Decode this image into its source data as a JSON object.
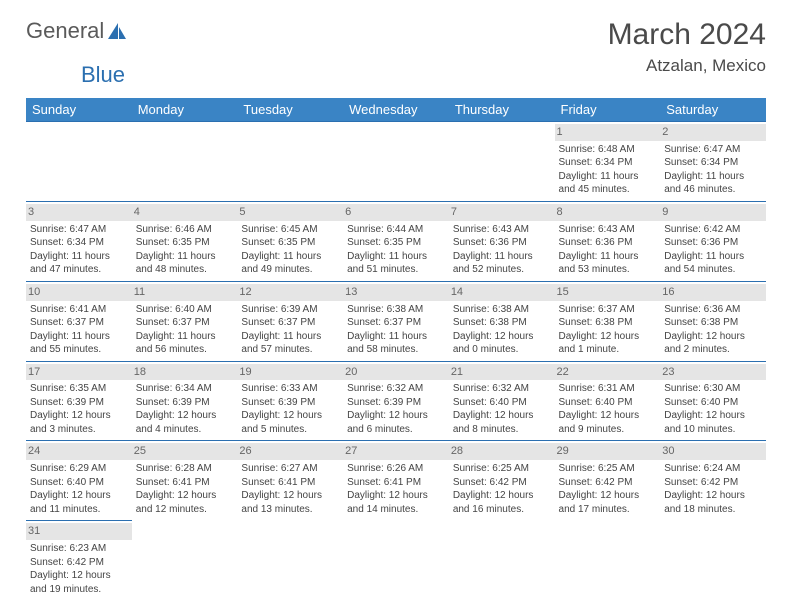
{
  "logo": {
    "word1": "General",
    "word2": "Blue",
    "sail_color": "#2b6fb0"
  },
  "title": "March 2024",
  "location": "Atzalan, Mexico",
  "colors": {
    "header_bg": "#3a84c5",
    "header_text": "#ffffff",
    "row_divider": "#2b6fb0",
    "daynum_bg": "#e5e5e5",
    "text": "#444444"
  },
  "day_headers": [
    "Sunday",
    "Monday",
    "Tuesday",
    "Wednesday",
    "Thursday",
    "Friday",
    "Saturday"
  ],
  "weeks": [
    [
      {
        "n": "",
        "sr": "",
        "ss": "",
        "d1": "",
        "d2": ""
      },
      {
        "n": "",
        "sr": "",
        "ss": "",
        "d1": "",
        "d2": ""
      },
      {
        "n": "",
        "sr": "",
        "ss": "",
        "d1": "",
        "d2": ""
      },
      {
        "n": "",
        "sr": "",
        "ss": "",
        "d1": "",
        "d2": ""
      },
      {
        "n": "",
        "sr": "",
        "ss": "",
        "d1": "",
        "d2": ""
      },
      {
        "n": "1",
        "sr": "Sunrise: 6:48 AM",
        "ss": "Sunset: 6:34 PM",
        "d1": "Daylight: 11 hours",
        "d2": "and 45 minutes."
      },
      {
        "n": "2",
        "sr": "Sunrise: 6:47 AM",
        "ss": "Sunset: 6:34 PM",
        "d1": "Daylight: 11 hours",
        "d2": "and 46 minutes."
      }
    ],
    [
      {
        "n": "3",
        "sr": "Sunrise: 6:47 AM",
        "ss": "Sunset: 6:34 PM",
        "d1": "Daylight: 11 hours",
        "d2": "and 47 minutes."
      },
      {
        "n": "4",
        "sr": "Sunrise: 6:46 AM",
        "ss": "Sunset: 6:35 PM",
        "d1": "Daylight: 11 hours",
        "d2": "and 48 minutes."
      },
      {
        "n": "5",
        "sr": "Sunrise: 6:45 AM",
        "ss": "Sunset: 6:35 PM",
        "d1": "Daylight: 11 hours",
        "d2": "and 49 minutes."
      },
      {
        "n": "6",
        "sr": "Sunrise: 6:44 AM",
        "ss": "Sunset: 6:35 PM",
        "d1": "Daylight: 11 hours",
        "d2": "and 51 minutes."
      },
      {
        "n": "7",
        "sr": "Sunrise: 6:43 AM",
        "ss": "Sunset: 6:36 PM",
        "d1": "Daylight: 11 hours",
        "d2": "and 52 minutes."
      },
      {
        "n": "8",
        "sr": "Sunrise: 6:43 AM",
        "ss": "Sunset: 6:36 PM",
        "d1": "Daylight: 11 hours",
        "d2": "and 53 minutes."
      },
      {
        "n": "9",
        "sr": "Sunrise: 6:42 AM",
        "ss": "Sunset: 6:36 PM",
        "d1": "Daylight: 11 hours",
        "d2": "and 54 minutes."
      }
    ],
    [
      {
        "n": "10",
        "sr": "Sunrise: 6:41 AM",
        "ss": "Sunset: 6:37 PM",
        "d1": "Daylight: 11 hours",
        "d2": "and 55 minutes."
      },
      {
        "n": "11",
        "sr": "Sunrise: 6:40 AM",
        "ss": "Sunset: 6:37 PM",
        "d1": "Daylight: 11 hours",
        "d2": "and 56 minutes."
      },
      {
        "n": "12",
        "sr": "Sunrise: 6:39 AM",
        "ss": "Sunset: 6:37 PM",
        "d1": "Daylight: 11 hours",
        "d2": "and 57 minutes."
      },
      {
        "n": "13",
        "sr": "Sunrise: 6:38 AM",
        "ss": "Sunset: 6:37 PM",
        "d1": "Daylight: 11 hours",
        "d2": "and 58 minutes."
      },
      {
        "n": "14",
        "sr": "Sunrise: 6:38 AM",
        "ss": "Sunset: 6:38 PM",
        "d1": "Daylight: 12 hours",
        "d2": "and 0 minutes."
      },
      {
        "n": "15",
        "sr": "Sunrise: 6:37 AM",
        "ss": "Sunset: 6:38 PM",
        "d1": "Daylight: 12 hours",
        "d2": "and 1 minute."
      },
      {
        "n": "16",
        "sr": "Sunrise: 6:36 AM",
        "ss": "Sunset: 6:38 PM",
        "d1": "Daylight: 12 hours",
        "d2": "and 2 minutes."
      }
    ],
    [
      {
        "n": "17",
        "sr": "Sunrise: 6:35 AM",
        "ss": "Sunset: 6:39 PM",
        "d1": "Daylight: 12 hours",
        "d2": "and 3 minutes."
      },
      {
        "n": "18",
        "sr": "Sunrise: 6:34 AM",
        "ss": "Sunset: 6:39 PM",
        "d1": "Daylight: 12 hours",
        "d2": "and 4 minutes."
      },
      {
        "n": "19",
        "sr": "Sunrise: 6:33 AM",
        "ss": "Sunset: 6:39 PM",
        "d1": "Daylight: 12 hours",
        "d2": "and 5 minutes."
      },
      {
        "n": "20",
        "sr": "Sunrise: 6:32 AM",
        "ss": "Sunset: 6:39 PM",
        "d1": "Daylight: 12 hours",
        "d2": "and 6 minutes."
      },
      {
        "n": "21",
        "sr": "Sunrise: 6:32 AM",
        "ss": "Sunset: 6:40 PM",
        "d1": "Daylight: 12 hours",
        "d2": "and 8 minutes."
      },
      {
        "n": "22",
        "sr": "Sunrise: 6:31 AM",
        "ss": "Sunset: 6:40 PM",
        "d1": "Daylight: 12 hours",
        "d2": "and 9 minutes."
      },
      {
        "n": "23",
        "sr": "Sunrise: 6:30 AM",
        "ss": "Sunset: 6:40 PM",
        "d1": "Daylight: 12 hours",
        "d2": "and 10 minutes."
      }
    ],
    [
      {
        "n": "24",
        "sr": "Sunrise: 6:29 AM",
        "ss": "Sunset: 6:40 PM",
        "d1": "Daylight: 12 hours",
        "d2": "and 11 minutes."
      },
      {
        "n": "25",
        "sr": "Sunrise: 6:28 AM",
        "ss": "Sunset: 6:41 PM",
        "d1": "Daylight: 12 hours",
        "d2": "and 12 minutes."
      },
      {
        "n": "26",
        "sr": "Sunrise: 6:27 AM",
        "ss": "Sunset: 6:41 PM",
        "d1": "Daylight: 12 hours",
        "d2": "and 13 minutes."
      },
      {
        "n": "27",
        "sr": "Sunrise: 6:26 AM",
        "ss": "Sunset: 6:41 PM",
        "d1": "Daylight: 12 hours",
        "d2": "and 14 minutes."
      },
      {
        "n": "28",
        "sr": "Sunrise: 6:25 AM",
        "ss": "Sunset: 6:42 PM",
        "d1": "Daylight: 12 hours",
        "d2": "and 16 minutes."
      },
      {
        "n": "29",
        "sr": "Sunrise: 6:25 AM",
        "ss": "Sunset: 6:42 PM",
        "d1": "Daylight: 12 hours",
        "d2": "and 17 minutes."
      },
      {
        "n": "30",
        "sr": "Sunrise: 6:24 AM",
        "ss": "Sunset: 6:42 PM",
        "d1": "Daylight: 12 hours",
        "d2": "and 18 minutes."
      }
    ],
    [
      {
        "n": "31",
        "sr": "Sunrise: 6:23 AM",
        "ss": "Sunset: 6:42 PM",
        "d1": "Daylight: 12 hours",
        "d2": "and 19 minutes."
      },
      {
        "n": "",
        "sr": "",
        "ss": "",
        "d1": "",
        "d2": ""
      },
      {
        "n": "",
        "sr": "",
        "ss": "",
        "d1": "",
        "d2": ""
      },
      {
        "n": "",
        "sr": "",
        "ss": "",
        "d1": "",
        "d2": ""
      },
      {
        "n": "",
        "sr": "",
        "ss": "",
        "d1": "",
        "d2": ""
      },
      {
        "n": "",
        "sr": "",
        "ss": "",
        "d1": "",
        "d2": ""
      },
      {
        "n": "",
        "sr": "",
        "ss": "",
        "d1": "",
        "d2": ""
      }
    ]
  ]
}
